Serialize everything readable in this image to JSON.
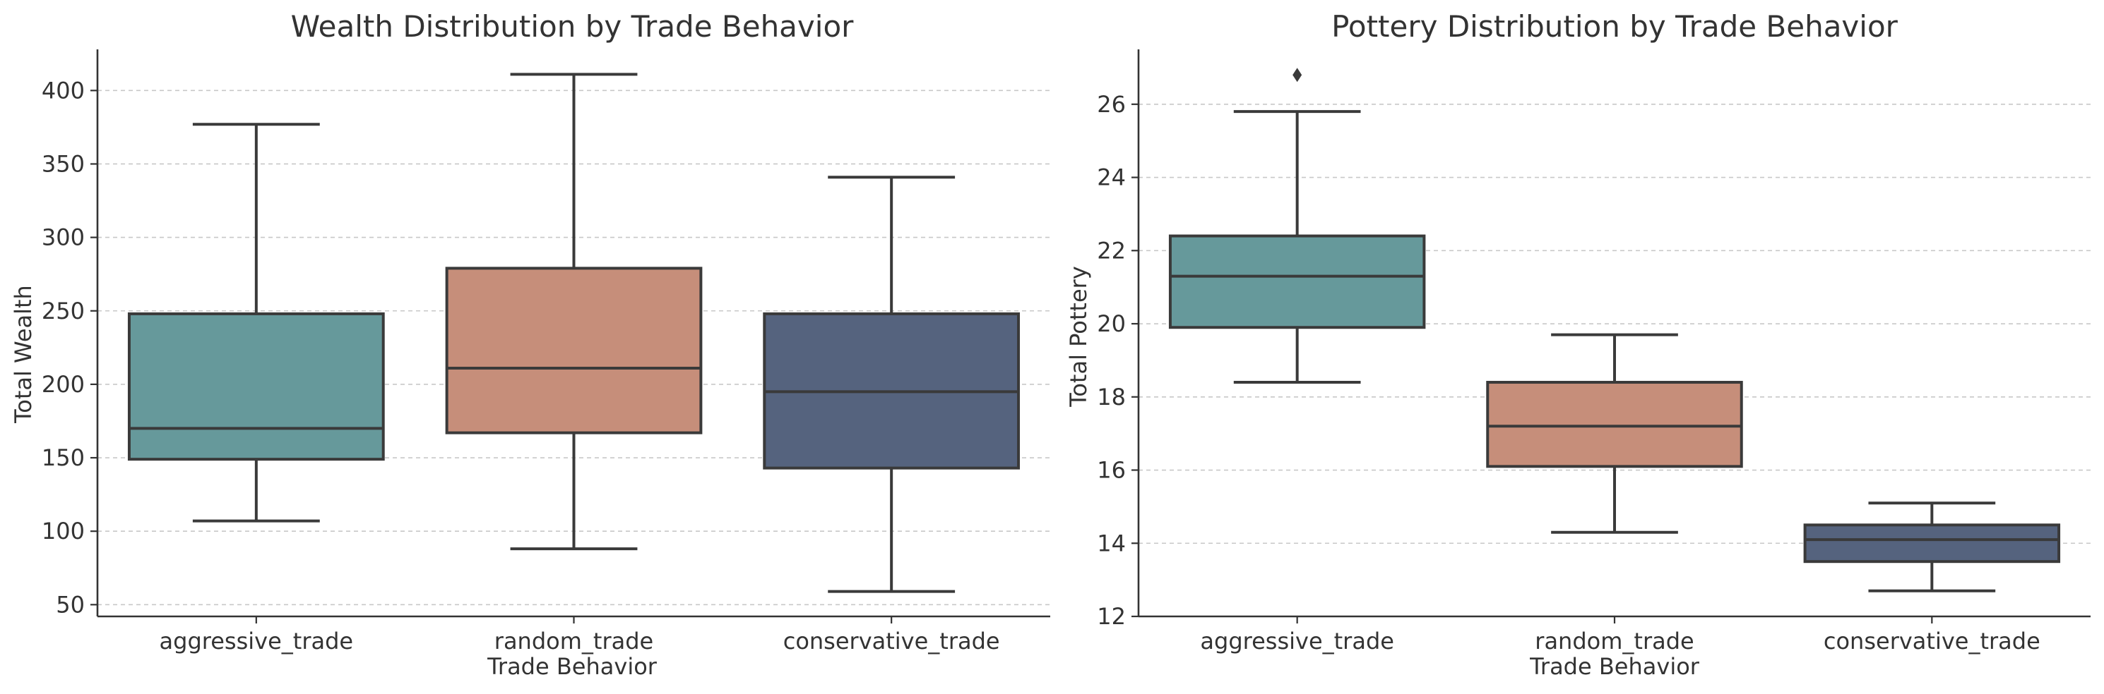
{
  "colors": {
    "aggressive_trade": "#66999b",
    "random_trade": "#c68e7a",
    "conservative_trade": "#55637e",
    "outline": "#3a3a3a",
    "grid": "#c8c8c8",
    "text": "#333333"
  },
  "chart_data": [
    {
      "type": "box",
      "title": "Wealth Distribution by Trade Behavior",
      "xlabel": "Trade Behavior",
      "ylabel": "Total Wealth",
      "ylim": [
        42,
        428
      ],
      "yticks": [
        50,
        100,
        150,
        200,
        250,
        300,
        350,
        400
      ],
      "ytick_labels": [
        "50",
        "100",
        "150",
        "200",
        "250",
        "300",
        "350",
        "400"
      ],
      "grid": "y-dashed",
      "categories": [
        "aggressive_trade",
        "random_trade",
        "conservative_trade"
      ],
      "boxes": [
        {
          "category": "aggressive_trade",
          "whisker_low": 107,
          "q1": 149,
          "median": 170,
          "q3": 248,
          "whisker_high": 377,
          "outliers": []
        },
        {
          "category": "random_trade",
          "whisker_low": 88,
          "q1": 167,
          "median": 211,
          "q3": 279,
          "whisker_high": 411,
          "outliers": []
        },
        {
          "category": "conservative_trade",
          "whisker_low": 59,
          "q1": 143,
          "median": 195,
          "q3": 248,
          "whisker_high": 341,
          "outliers": []
        }
      ]
    },
    {
      "type": "box",
      "title": "Pottery Distribution by Trade Behavior",
      "xlabel": "Trade Behavior",
      "ylabel": "Total Pottery",
      "ylim": [
        12,
        27.5
      ],
      "yticks": [
        12,
        14,
        16,
        18,
        20,
        22,
        24,
        26
      ],
      "ytick_labels": [
        "12",
        "14",
        "16",
        "18",
        "20",
        "22",
        "24",
        "26"
      ],
      "grid": "y-dashed",
      "categories": [
        "aggressive_trade",
        "random_trade",
        "conservative_trade"
      ],
      "boxes": [
        {
          "category": "aggressive_trade",
          "whisker_low": 18.4,
          "q1": 19.9,
          "median": 21.3,
          "q3": 22.4,
          "whisker_high": 25.8,
          "outliers": [
            26.8
          ]
        },
        {
          "category": "random_trade",
          "whisker_low": 14.3,
          "q1": 16.1,
          "median": 17.2,
          "q3": 18.4,
          "whisker_high": 19.7,
          "outliers": []
        },
        {
          "category": "conservative_trade",
          "whisker_low": 12.7,
          "q1": 13.5,
          "median": 14.1,
          "q3": 14.5,
          "whisker_high": 15.1,
          "outliers": []
        }
      ]
    }
  ]
}
